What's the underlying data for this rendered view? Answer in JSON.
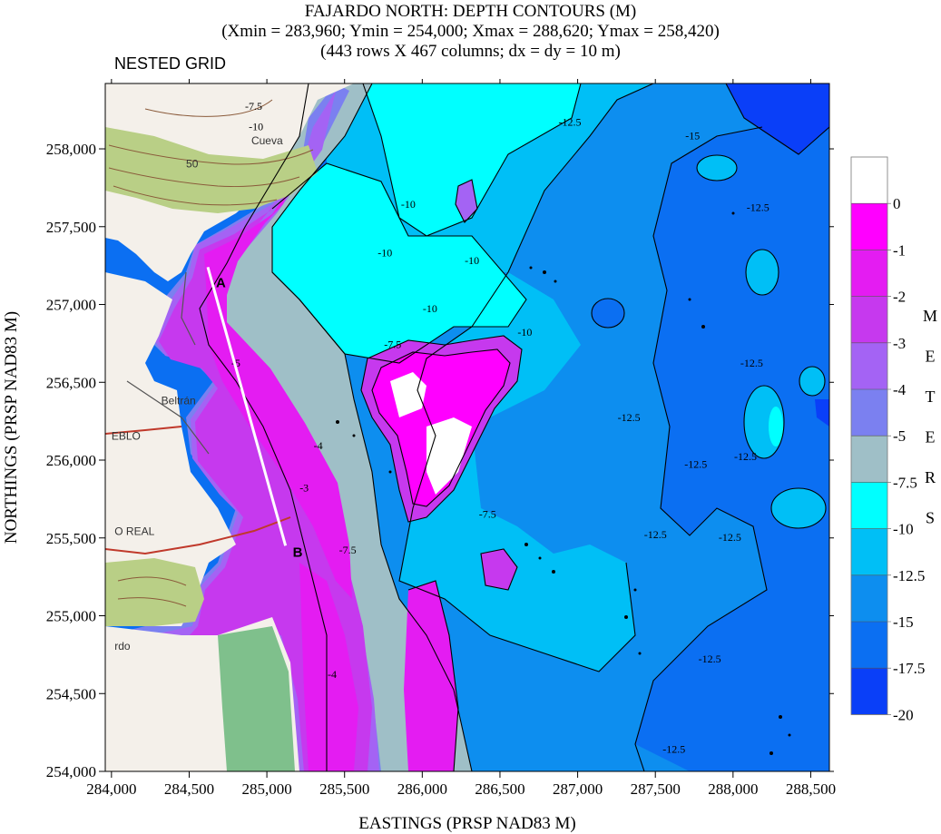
{
  "title": {
    "line1": "FAJARDO NORTH: DEPTH CONTOURS (M)",
    "line2": "(Xmin = 283,960; Ymin = 254,000; Xmax = 288,620; Ymax = 258,420)",
    "line3": "(443 rows X 467 columns; dx = dy = 10 m)"
  },
  "subtitle": "NESTED GRID",
  "axes": {
    "xlabel": "EASTINGS (PRSP NAD83 M)",
    "ylabel": "NORTHINGS (PRSP NAD83 M)",
    "xlim": [
      283960,
      288620
    ],
    "ylim": [
      254000,
      258420
    ],
    "x_ticks": [
      {
        "value": 284000,
        "label": "284,000"
      },
      {
        "value": 284500,
        "label": "284,500"
      },
      {
        "value": 285000,
        "label": "285,000"
      },
      {
        "value": 285500,
        "label": "285,500"
      },
      {
        "value": 286000,
        "label": "286,000"
      },
      {
        "value": 286500,
        "label": "286,500"
      },
      {
        "value": 287000,
        "label": "287,000"
      },
      {
        "value": 287500,
        "label": "287,500"
      },
      {
        "value": 288000,
        "label": "288,000"
      },
      {
        "value": 288500,
        "label": "288,500"
      }
    ],
    "y_ticks": [
      {
        "value": 254000,
        "label": "254,000"
      },
      {
        "value": 254500,
        "label": "254,500"
      },
      {
        "value": 255000,
        "label": "255,000"
      },
      {
        "value": 255500,
        "label": "255,500"
      },
      {
        "value": 256000,
        "label": "256,000"
      },
      {
        "value": 256500,
        "label": "256,500"
      },
      {
        "value": 257000,
        "label": "257,000"
      },
      {
        "value": 257500,
        "label": "257,500"
      },
      {
        "value": 258000,
        "label": "258,000"
      }
    ]
  },
  "legend": {
    "unit_letters": [
      "M",
      "E",
      "T",
      "E",
      "R",
      "S"
    ],
    "top_color": "#ffffff",
    "bands": [
      {
        "label": "0",
        "color": "#ff00ff"
      },
      {
        "label": "-1",
        "color": "#e41cf2"
      },
      {
        "label": "-2",
        "color": "#c639ee"
      },
      {
        "label": "-3",
        "color": "#a463f4"
      },
      {
        "label": "-4",
        "color": "#7b80f0"
      },
      {
        "label": "-5",
        "color": "#9fbfc7"
      },
      {
        "label": "-7.5",
        "color": "#00ffff"
      },
      {
        "label": "-10",
        "color": "#00bff6"
      },
      {
        "label": "-12.5",
        "color": "#0d8eef"
      },
      {
        "label": "-15",
        "color": "#0b6ff2"
      },
      {
        "label": "-17.5",
        "color": "#0a3ff8"
      },
      {
        "label": "-20",
        "color": "#0000ff"
      }
    ]
  },
  "transect": {
    "start_label": "A",
    "end_label": "B",
    "start": {
      "x": 284620,
      "y": 257240
    },
    "end": {
      "x": 285120,
      "y": 255450
    },
    "color": "#ffffff"
  },
  "contour_labels": [
    {
      "text": "-10",
      "x": 284930,
      "y": 258120
    },
    {
      "text": "-7.5",
      "x": 284915,
      "y": 258250
    },
    {
      "text": "-10",
      "x": 285910,
      "y": 257620
    },
    {
      "text": "-10",
      "x": 285760,
      "y": 257310
    },
    {
      "text": "-10",
      "x": 286320,
      "y": 257260
    },
    {
      "text": "-10",
      "x": 286660,
      "y": 256800
    },
    {
      "text": "-10",
      "x": 286050,
      "y": 256950
    },
    {
      "text": "-7.5",
      "x": 285810,
      "y": 256720
    },
    {
      "text": "-12.5",
      "x": 286950,
      "y": 258150
    },
    {
      "text": "-12.5",
      "x": 287330,
      "y": 256250
    },
    {
      "text": "-12.5",
      "x": 287500,
      "y": 255500
    },
    {
      "text": "-12.5",
      "x": 287760,
      "y": 255950
    },
    {
      "text": "-12.5",
      "x": 288160,
      "y": 257600
    },
    {
      "text": "-12.5",
      "x": 288120,
      "y": 256600
    },
    {
      "text": "-12.5",
      "x": 288080,
      "y": 256000
    },
    {
      "text": "-12.5",
      "x": 287980,
      "y": 255480
    },
    {
      "text": "-12.5",
      "x": 287850,
      "y": 254700
    },
    {
      "text": "-12.5",
      "x": 287620,
      "y": 254120
    },
    {
      "text": "-15",
      "x": 287740,
      "y": 258060
    },
    {
      "text": "-4",
      "x": 285330,
      "y": 256070
    },
    {
      "text": "-3",
      "x": 285240,
      "y": 255800
    },
    {
      "text": "-5",
      "x": 284800,
      "y": 256600
    },
    {
      "text": "-7.5",
      "x": 285520,
      "y": 255400
    },
    {
      "text": "-4",
      "x": 285420,
      "y": 254600
    },
    {
      "text": "-7.5",
      "x": 286420,
      "y": 255630
    }
  ],
  "basemap_labels": [
    {
      "text": "Beltrán",
      "x": 284320,
      "y": 256360
    },
    {
      "text": "O REAL",
      "x": 284020,
      "y": 255520
    },
    {
      "text": "Cueva",
      "x": 284900,
      "y": 258030
    },
    {
      "text": "50",
      "x": 284480,
      "y": 257880
    },
    {
      "text": "EBLO",
      "x": 284000,
      "y": 256130
    },
    {
      "text": "rdo",
      "x": 284020,
      "y": 254780
    }
  ],
  "colors": {
    "land_white": "#ffffff",
    "topo_green": "#b9cf86",
    "topo_line": "#8a5a3a",
    "road_red": "#c0392b",
    "forest_green": "#7fc08c",
    "contour": "#000000"
  }
}
